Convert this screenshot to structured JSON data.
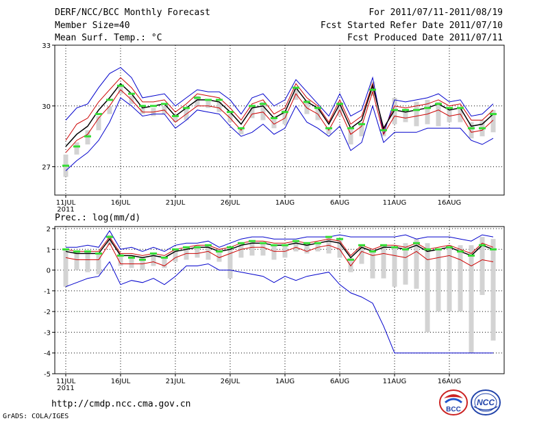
{
  "header": {
    "title": "DERF/NCC/BCC Monthly Forecast",
    "member_size": "Member Size=40",
    "variable": "Mean Surf. Temp.: °C",
    "period": "For 2011/07/11-2011/08/19",
    "refer_date": "Fcst Started Refer Date 2011/07/10",
    "produced_date": "Fcst Produced Date 2011/07/11"
  },
  "footer": {
    "url": "http://cmdp.ncc.cma.gov.cn",
    "credit": "GrADS: COLA/IGES",
    "logo_left_text": "BCC",
    "logo_right_text": "NCC"
  },
  "colors": {
    "envelope": "#0000cc",
    "spread": "#cc0000",
    "mean": "#000000",
    "median_tick": "#33dd33",
    "bar": "#d3d3d3",
    "grid": "#000000"
  },
  "chart_data": [
    {
      "type": "line",
      "title": "Mean Surf. Temp.: °C",
      "x_tick_labels": [
        "11JUL",
        "16JUL",
        "21JUL",
        "26JUL",
        "1AUG",
        "6AUG",
        "11AUG",
        "16AUG"
      ],
      "x_sublabel": "2011",
      "y_ticks": [
        27,
        30,
        33
      ],
      "ylim": [
        25.6,
        33
      ],
      "days": 40,
      "series": [
        {
          "name": "max",
          "values": [
            29.3,
            29.9,
            30.1,
            30.9,
            31.6,
            31.9,
            31.4,
            30.4,
            30.5,
            30.6,
            30.0,
            30.4,
            30.8,
            30.7,
            30.7,
            30.3,
            29.6,
            30.4,
            30.6,
            30.0,
            30.3,
            31.3,
            30.7,
            30.1,
            29.5,
            30.6,
            29.5,
            29.8,
            31.4,
            28.6,
            30.3,
            30.2,
            30.3,
            30.4,
            30.6,
            30.2,
            30.3,
            29.5,
            29.6,
            30.1
          ]
        },
        {
          "name": "p_high",
          "values": [
            28.3,
            29.1,
            29.4,
            30.2,
            30.8,
            31.4,
            30.9,
            30.2,
            30.2,
            30.3,
            29.7,
            30.1,
            30.6,
            30.5,
            30.4,
            29.9,
            29.3,
            30.1,
            30.3,
            29.6,
            29.9,
            31.1,
            30.4,
            30.0,
            29.2,
            30.3,
            29.1,
            29.5,
            31.1,
            28.8,
            30.0,
            29.9,
            30.0,
            30.1,
            30.3,
            30.0,
            30.1,
            29.3,
            29.3,
            29.8
          ]
        },
        {
          "name": "mean",
          "values": [
            28.0,
            28.6,
            29.0,
            29.8,
            30.4,
            31.1,
            30.6,
            29.9,
            30.0,
            30.1,
            29.5,
            29.9,
            30.3,
            30.3,
            30.2,
            29.7,
            29.1,
            29.9,
            30.0,
            29.4,
            29.7,
            30.9,
            30.2,
            29.9,
            29.1,
            30.1,
            28.9,
            29.3,
            31.0,
            28.9,
            29.8,
            29.7,
            29.8,
            29.9,
            30.1,
            29.8,
            29.9,
            29.0,
            29.1,
            29.6
          ]
        },
        {
          "name": "p_low",
          "values": [
            27.7,
            28.3,
            28.6,
            29.4,
            30.0,
            30.8,
            30.3,
            29.7,
            29.7,
            29.8,
            29.2,
            29.6,
            30.0,
            30.0,
            29.9,
            29.4,
            28.8,
            29.6,
            29.7,
            29.1,
            29.4,
            30.6,
            29.9,
            29.6,
            28.8,
            29.8,
            28.6,
            29.0,
            30.7,
            28.6,
            29.5,
            29.4,
            29.5,
            29.6,
            29.8,
            29.5,
            29.6,
            28.7,
            28.8,
            29.3
          ]
        },
        {
          "name": "min",
          "values": [
            26.8,
            27.3,
            27.7,
            28.3,
            29.2,
            30.4,
            30.0,
            29.5,
            29.6,
            29.6,
            28.9,
            29.3,
            29.8,
            29.7,
            29.6,
            29.0,
            28.5,
            28.7,
            29.1,
            28.6,
            28.9,
            30.0,
            29.2,
            28.9,
            28.5,
            29.0,
            27.8,
            28.2,
            30.0,
            28.2,
            28.7,
            28.7,
            28.7,
            28.9,
            28.9,
            28.9,
            28.9,
            28.3,
            28.1,
            28.4
          ]
        },
        {
          "name": "median",
          "values": [
            27.05,
            28.0,
            28.5,
            29.6,
            30.3,
            31.0,
            30.6,
            30.0,
            30.0,
            30.1,
            29.5,
            29.9,
            30.4,
            30.3,
            30.3,
            29.7,
            28.9,
            30.0,
            30.1,
            29.4,
            29.7,
            30.9,
            30.2,
            29.9,
            28.9,
            30.1,
            28.9,
            29.1,
            30.8,
            28.8,
            29.8,
            29.8,
            29.8,
            29.9,
            30.1,
            29.9,
            29.9,
            28.9,
            28.9,
            29.6
          ]
        },
        {
          "name": "bar_top",
          "values": [
            27.6,
            28.2,
            28.8,
            29.5,
            30.0,
            31.0,
            30.5,
            29.9,
            29.9,
            30.0,
            29.6,
            29.9,
            30.5,
            30.3,
            30.2,
            29.6,
            28.9,
            30.0,
            30.2,
            29.5,
            29.8,
            30.9,
            30.3,
            29.9,
            28.9,
            30.2,
            28.9,
            29.2,
            31.2,
            28.7,
            30.4,
            29.8,
            30.2,
            30.3,
            30.2,
            29.9,
            29.9,
            29.2,
            29.3,
            29.8
          ]
        },
        {
          "name": "bar_bottom",
          "values": [
            26.5,
            27.6,
            28.1,
            28.8,
            29.6,
            30.6,
            30.1,
            29.6,
            29.5,
            29.6,
            29.2,
            29.3,
            30.0,
            29.9,
            29.7,
            29.2,
            28.6,
            29.4,
            29.3,
            28.9,
            29.1,
            30.3,
            29.6,
            29.3,
            28.6,
            29.5,
            28.1,
            28.5,
            30.5,
            28.5,
            29.1,
            29.2,
            29.0,
            29.1,
            29.0,
            29.2,
            29.2,
            28.4,
            28.5,
            28.7
          ]
        }
      ]
    },
    {
      "type": "line",
      "title": "Prec.: log(mm/d)",
      "x_tick_labels": [
        "11JUL",
        "16JUL",
        "21JUL",
        "26JUL",
        "1AUG",
        "6AUG",
        "11AUG",
        "16AUG"
      ],
      "x_sublabel": "2011",
      "y_ticks": [
        -5,
        -4,
        -3,
        -2,
        -1,
        0,
        1,
        2
      ],
      "ylim": [
        -5,
        2.1
      ],
      "days": 40,
      "series": [
        {
          "name": "max",
          "values": [
            1.1,
            1.1,
            1.2,
            1.1,
            1.9,
            1.0,
            1.1,
            0.9,
            1.1,
            0.9,
            1.2,
            1.3,
            1.3,
            1.4,
            1.1,
            1.3,
            1.5,
            1.6,
            1.6,
            1.5,
            1.5,
            1.5,
            1.6,
            1.6,
            1.6,
            1.7,
            1.6,
            1.6,
            1.6,
            1.6,
            1.6,
            1.7,
            1.5,
            1.6,
            1.6,
            1.6,
            1.5,
            1.4,
            1.7,
            1.6
          ]
        },
        {
          "name": "p_high",
          "values": [
            1.0,
            0.9,
            0.9,
            0.9,
            1.6,
            0.8,
            0.8,
            0.7,
            0.8,
            0.7,
            1.0,
            1.1,
            1.2,
            1.2,
            1.0,
            1.1,
            1.3,
            1.4,
            1.4,
            1.3,
            1.3,
            1.4,
            1.3,
            1.4,
            1.5,
            1.4,
            0.7,
            1.2,
            1.0,
            1.2,
            1.2,
            1.1,
            1.3,
            1.0,
            1.1,
            1.2,
            1.0,
            0.8,
            1.3,
            1.1
          ]
        },
        {
          "name": "mean",
          "values": [
            0.9,
            0.8,
            0.8,
            0.8,
            1.5,
            0.7,
            0.7,
            0.6,
            0.7,
            0.6,
            0.9,
            1.0,
            1.1,
            1.1,
            0.9,
            1.0,
            1.2,
            1.3,
            1.3,
            1.2,
            1.2,
            1.3,
            1.2,
            1.3,
            1.4,
            1.3,
            0.6,
            1.1,
            0.9,
            1.1,
            1.1,
            1.0,
            1.2,
            0.9,
            1.0,
            1.1,
            0.9,
            0.7,
            1.2,
            1.0
          ]
        },
        {
          "name": "p_low",
          "values": [
            0.6,
            0.5,
            0.5,
            0.5,
            1.3,
            0.3,
            0.3,
            0.3,
            0.4,
            0.2,
            0.6,
            0.8,
            0.8,
            0.9,
            0.6,
            0.8,
            1.0,
            1.1,
            1.1,
            0.9,
            0.9,
            1.1,
            0.9,
            1.1,
            1.2,
            1.0,
            0.2,
            0.9,
            0.7,
            0.8,
            0.7,
            0.6,
            0.9,
            0.5,
            0.6,
            0.7,
            0.5,
            0.2,
            0.5,
            0.4
          ]
        },
        {
          "name": "min",
          "values": [
            -0.8,
            -0.6,
            -0.4,
            -0.3,
            0.4,
            -0.7,
            -0.5,
            -0.6,
            -0.4,
            -0.7,
            -0.3,
            0.2,
            0.2,
            0.3,
            0.0,
            0.0,
            -0.1,
            -0.2,
            -0.3,
            -0.6,
            -0.3,
            -0.5,
            -0.3,
            -0.2,
            -0.1,
            -0.7,
            -1.1,
            -1.3,
            -1.6,
            -2.7,
            -4.0,
            -4.0,
            -4.0,
            -4.0,
            -4.0,
            -4.0,
            -4.0,
            -4.0,
            -4.0,
            -4.0
          ]
        },
        {
          "name": "median",
          "values": [
            1.0,
            0.9,
            0.9,
            0.8,
            1.6,
            0.7,
            0.6,
            0.5,
            0.8,
            0.6,
            1.0,
            1.1,
            1.1,
            1.2,
            0.9,
            1.1,
            1.3,
            1.4,
            1.3,
            1.2,
            1.2,
            1.4,
            1.3,
            1.3,
            1.6,
            1.5,
            0.5,
            1.2,
            0.9,
            1.2,
            1.1,
            1.0,
            1.3,
            1.0,
            1.0,
            1.1,
            0.9,
            0.7,
            1.2,
            1.0
          ]
        },
        {
          "name": "bar_top",
          "values": [
            1.0,
            0.9,
            0.9,
            0.8,
            1.7,
            0.8,
            0.7,
            0.6,
            0.8,
            0.6,
            1.0,
            1.1,
            1.2,
            1.2,
            1.0,
            1.1,
            1.3,
            1.4,
            1.3,
            1.2,
            1.2,
            1.4,
            1.3,
            1.3,
            1.6,
            1.5,
            0.6,
            1.2,
            1.0,
            1.2,
            1.1,
            1.3,
            1.5,
            1.3,
            1.0,
            1.2,
            1.2,
            1.2,
            1.6,
            1.5
          ]
        },
        {
          "name": "bar_bottom",
          "values": [
            -0.8,
            0.0,
            -0.1,
            -0.2,
            1.2,
            0.2,
            0.1,
            0.0,
            0.2,
            0.1,
            0.4,
            0.5,
            0.6,
            0.5,
            0.4,
            -0.4,
            0.6,
            0.7,
            0.7,
            0.5,
            0.6,
            0.9,
            0.8,
            0.9,
            0.8,
            0.6,
            -0.1,
            0.3,
            -0.4,
            -0.4,
            -0.8,
            -0.7,
            -0.9,
            -3.0,
            -2.0,
            -2.0,
            -2.0,
            -4.0,
            -1.2,
            -3.4
          ]
        }
      ]
    }
  ]
}
